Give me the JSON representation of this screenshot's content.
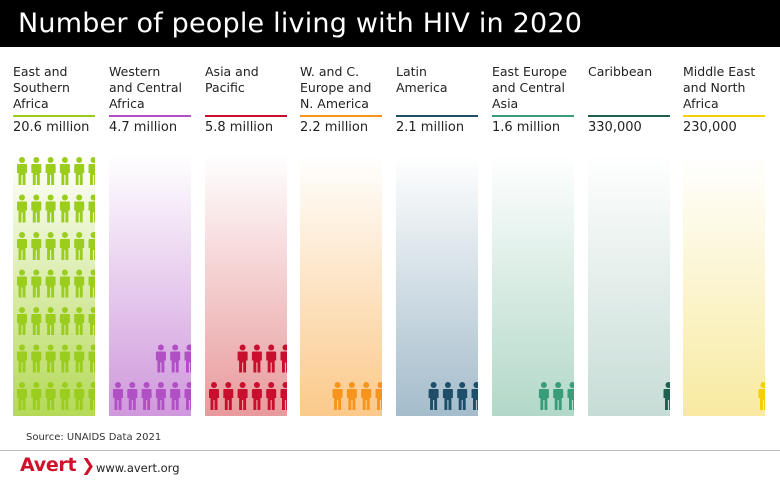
{
  "title": "Number of people living with HIV in 2020",
  "source": "Source: UNAIDS Data 2021",
  "footer": {
    "logo": "Avert",
    "logo_chevron": "❯",
    "website": "www.avert.org"
  },
  "chart_data": {
    "type": "pictogram",
    "title": "Number of people living with HIV in 2020",
    "categories": [
      "East and Southern Africa",
      "Western and Central Africa",
      "Asia and Pacific",
      "W. and C. Europe and N. America",
      "Latin America",
      "East Europe and Central Asia",
      "Caribbean",
      "Middle East and North Africa"
    ],
    "values": [
      20600000,
      4700000,
      5800000,
      2200000,
      2100000,
      1600000,
      330000,
      230000
    ],
    "value_labels": [
      "20.6 million",
      "4.7 million",
      "5.8 million",
      "2.2 million",
      "2.1 million",
      "1.6 million",
      "330,000",
      "230,000"
    ],
    "icon_counts": [
      42,
      9,
      10,
      4,
      4,
      3,
      1,
      1
    ],
    "colors": [
      "#9acd1e",
      "#b14fc5",
      "#c8102e",
      "#f7941d",
      "#1f4e6b",
      "#3a9d7a",
      "#1e5f4f",
      "#f5d000"
    ]
  },
  "regions": [
    {
      "label_lines": [
        "East and",
        "Southern",
        "Africa"
      ],
      "value": "20.6 million",
      "color": "#9acd1e",
      "tint": "#b5d957",
      "icons": 42
    },
    {
      "label_lines": [
        "Western",
        "and Central",
        "Africa"
      ],
      "value": "4.7 million",
      "color": "#b14fc5",
      "tint": "#cf98dc",
      "icons": 9
    },
    {
      "label_lines": [
        "Asia and",
        "Pacific"
      ],
      "value": "5.8 million",
      "color": "#c8102e",
      "tint": "#e89a9c",
      "icons": 10
    },
    {
      "label_lines": [
        "W. and C.",
        "Europe and",
        "N. America"
      ],
      "value": "2.2 million",
      "color": "#f7941d",
      "tint": "#fbc98a",
      "icons": 4
    },
    {
      "label_lines": [
        "Latin",
        "America"
      ],
      "value": "2.1 million",
      "color": "#1f4e6b",
      "tint": "#a4bccb",
      "icons": 4
    },
    {
      "label_lines": [
        "East Europe",
        "and Central",
        "Asia"
      ],
      "value": "1.6 million",
      "color": "#3a9d7a",
      "tint": "#b2d8c8",
      "icons": 3
    },
    {
      "label_lines": [
        "Caribbean"
      ],
      "value": "330,000",
      "color": "#1e5f4f",
      "tint": "#c7dcd6",
      "icons": 1
    },
    {
      "label_lines": [
        "Middle East",
        "and North",
        "Africa"
      ],
      "value": "230,000",
      "color": "#f5d000",
      "tint": "#f8eaa0",
      "icons": 1
    }
  ]
}
